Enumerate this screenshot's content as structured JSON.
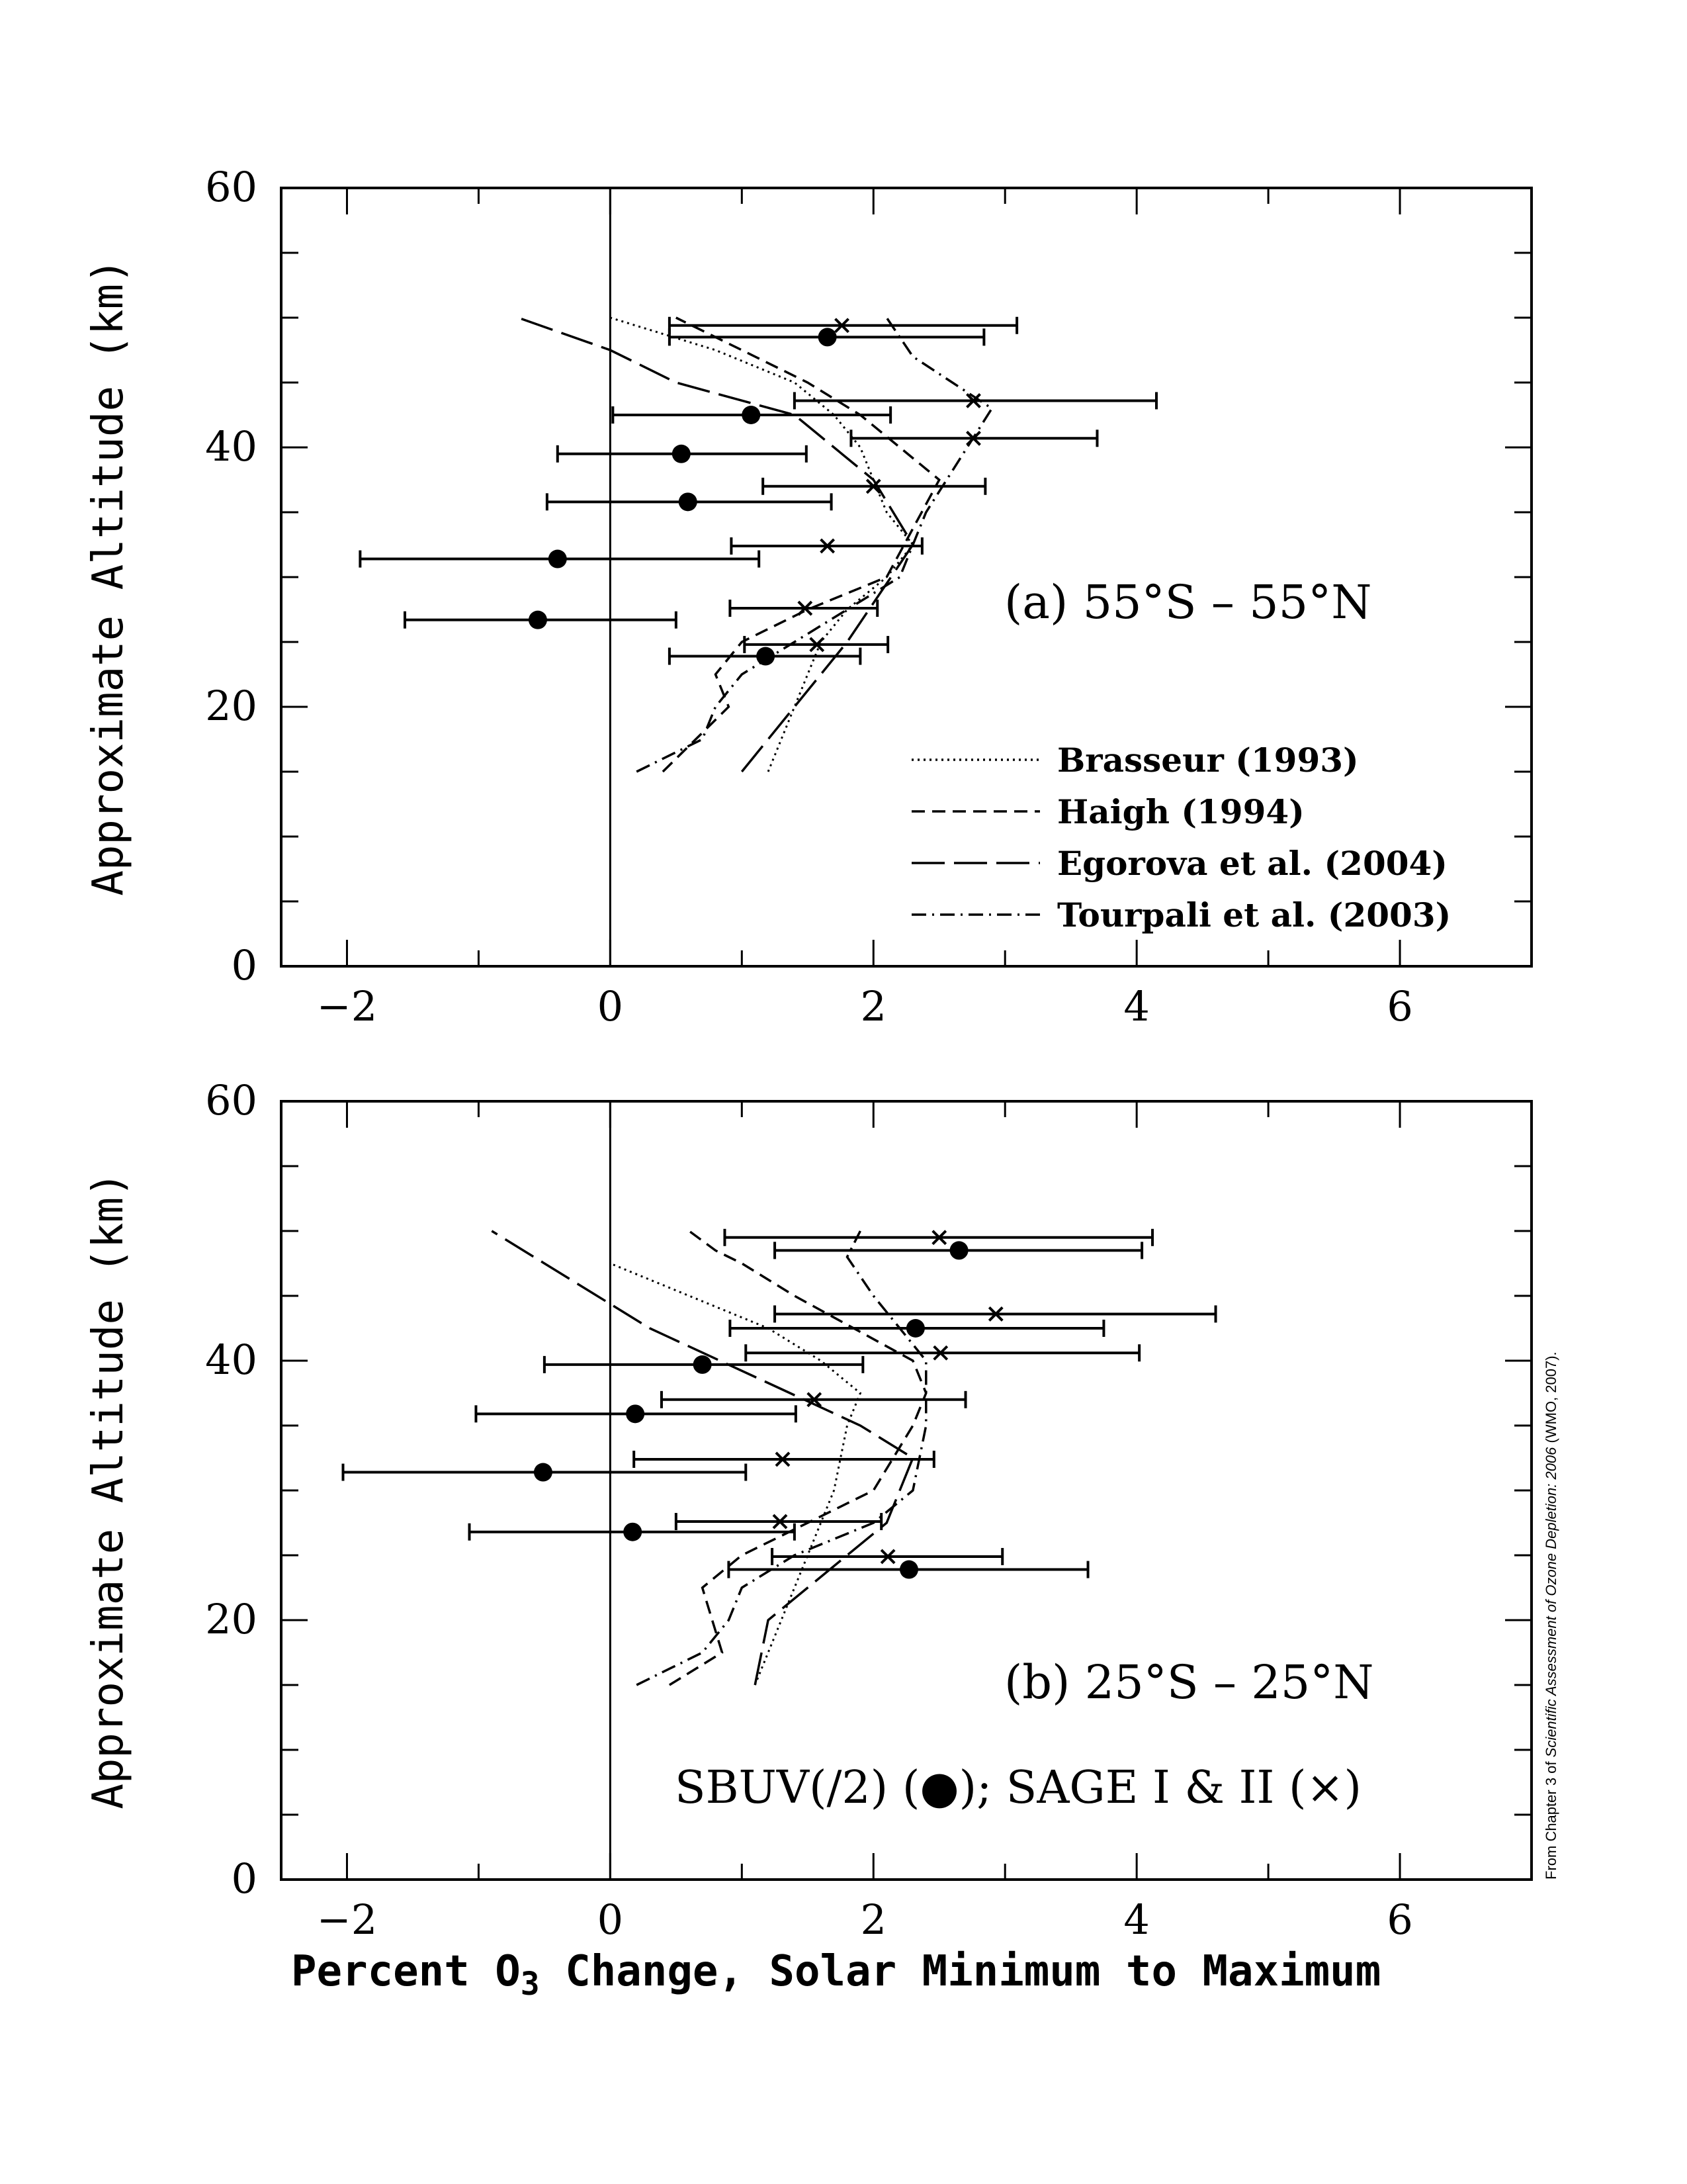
{
  "figure": {
    "xlabel_prefix": "Percent O",
    "xlabel_sub": "3",
    "xlabel_suffix": " Change, Solar Minimum to Maximum",
    "credit_prefix": "From Chapter 3 of ",
    "credit_italic": "Scientific Assessment of Ozone Depletion: 2006",
    "credit_suffix": " (WMO, 2007).",
    "observations_note": "SBUV(/2) (●); SAGE I & II (×)"
  },
  "chart_data": [
    {
      "type": "line",
      "panel_label": "(a) 55°S – 55°N",
      "ylabel": "Approximate Altitude (km)",
      "xlim": [
        -2.5,
        7
      ],
      "ylim": [
        0,
        60
      ],
      "xticks": [
        -2,
        0,
        2,
        4,
        6
      ],
      "xtick_labels": [
        "−2",
        "0",
        "2",
        "4",
        "6"
      ],
      "yticks": [
        0,
        20,
        40,
        60
      ],
      "ytick_labels": [
        "0",
        "20",
        "40",
        "60"
      ],
      "legend_position": "bottom-right",
      "series": [
        {
          "name": "Brasseur (1993)",
          "style": "dotted",
          "x": [
            1.2,
            1.4,
            1.6,
            1.8,
            2.1,
            2.3,
            2.1,
            2.0,
            1.9,
            1.7,
            1.4,
            0.8,
            0.0
          ],
          "y": [
            15,
            20,
            25,
            27.5,
            30,
            32.5,
            35,
            37.5,
            40,
            42.5,
            45,
            47.5,
            50
          ]
        },
        {
          "name": "Haigh (1994)",
          "style": "dashed",
          "x": [
            0.4,
            0.9,
            0.8,
            1.0,
            1.5,
            2.1,
            2.5,
            2.2,
            1.9,
            1.5,
            1.0,
            0.5
          ],
          "y": [
            15,
            20,
            22.5,
            25,
            27.5,
            30,
            37.5,
            40,
            42.5,
            45,
            47.5,
            50
          ]
        },
        {
          "name": "Egorova et al. (2004)",
          "style": "long-dash",
          "x": [
            1.0,
            1.4,
            1.8,
            2.3,
            2.0,
            1.4,
            0.5,
            0.0,
            -0.7
          ],
          "y": [
            15,
            20,
            25,
            32.5,
            37.5,
            42.5,
            45,
            47.5,
            50
          ]
        },
        {
          "name": "Tourpali et al. (2003)",
          "style": "dash-dot",
          "x": [
            0.2,
            0.7,
            0.8,
            1.0,
            1.4,
            2.2,
            2.4,
            2.9,
            2.6,
            2.3,
            2.1,
            2.1
          ],
          "y": [
            15,
            17.5,
            20,
            22.5,
            25,
            30,
            35,
            43,
            45,
            47,
            50,
            50
          ]
        }
      ],
      "sbuv": {
        "y": [
          48.5,
          42.5,
          39.5,
          35.8,
          31.4,
          26.7,
          23.9
        ],
        "x": [
          1.65,
          1.07,
          0.54,
          0.59,
          -0.4,
          -0.55,
          1.18
        ],
        "xerr_low": [
          0.45,
          0.02,
          -0.4,
          -0.48,
          -1.9,
          -1.56,
          0.45
        ],
        "xerr_high": [
          2.84,
          2.13,
          1.49,
          1.68,
          1.13,
          0.5,
          1.9
        ]
      },
      "sage": {
        "y": [
          49.4,
          43.6,
          40.7,
          37.0,
          32.4,
          27.6,
          24.8
        ],
        "x": [
          1.76,
          2.76,
          2.76,
          2.0,
          1.65,
          1.48,
          1.57
        ],
        "xerr_low": [
          0.45,
          1.4,
          1.83,
          1.16,
          0.92,
          0.91,
          1.02
        ],
        "xerr_high": [
          3.09,
          4.15,
          3.7,
          2.85,
          2.37,
          2.03,
          2.11
        ]
      }
    },
    {
      "type": "line",
      "panel_label": "(b) 25°S – 25°N",
      "ylabel": "Approximate Altitude (km)",
      "xlim": [
        -2.5,
        7
      ],
      "ylim": [
        0,
        60
      ],
      "xticks": [
        -2,
        0,
        2,
        4,
        6
      ],
      "xtick_labels": [
        "−2",
        "0",
        "2",
        "4",
        "6"
      ],
      "yticks": [
        0,
        20,
        40,
        60
      ],
      "ytick_labels": [
        "0",
        "20",
        "40",
        "60"
      ],
      "series": [
        {
          "name": "Brasseur (1993)",
          "style": "dotted",
          "x": [
            1.1,
            1.3,
            1.5,
            1.7,
            1.8,
            1.9,
            1.6,
            1.2,
            0.6,
            0.0
          ],
          "y": [
            15,
            20,
            25,
            30,
            35,
            37.5,
            40,
            42.5,
            45,
            47.5
          ]
        },
        {
          "name": "Haigh (1994)",
          "style": "dashed",
          "x": [
            0.45,
            0.85,
            0.7,
            1.0,
            2.0,
            2.3,
            2.4,
            2.3,
            1.4,
            1.0,
            0.8,
            0.6
          ],
          "y": [
            15,
            17.5,
            22.5,
            25,
            30,
            35,
            37.5,
            40,
            45,
            47.5,
            48.5,
            50
          ]
        },
        {
          "name": "Egorova et al. (2004)",
          "style": "long-dash",
          "x": [
            1.1,
            1.2,
            1.5,
            2.1,
            2.3,
            1.9,
            0.3,
            -0.5,
            -0.9
          ],
          "y": [
            15,
            20,
            22.5,
            27.5,
            32.5,
            35,
            42.5,
            47.5,
            50
          ]
        },
        {
          "name": "Tourpali et al. (2003)",
          "style": "dash-dot",
          "x": [
            0.2,
            0.7,
            0.9,
            1.0,
            1.4,
            2.0,
            2.3,
            2.4,
            2.4,
            2.0,
            1.8,
            1.9
          ],
          "y": [
            15,
            17.5,
            20,
            22.5,
            25,
            27.5,
            30,
            35,
            40,
            45,
            48,
            50
          ]
        }
      ],
      "sbuv": {
        "y": [
          48.5,
          42.5,
          39.7,
          35.9,
          31.4,
          26.8,
          23.9
        ],
        "x": [
          2.65,
          2.32,
          0.7,
          0.19,
          -0.51,
          0.17,
          2.27
        ],
        "xerr_low": [
          1.25,
          0.91,
          -0.5,
          -1.02,
          -2.03,
          -1.07,
          0.9
        ],
        "xerr_high": [
          4.04,
          3.75,
          1.92,
          1.41,
          1.03,
          1.4,
          3.63
        ]
      },
      "sage": {
        "y": [
          49.5,
          43.6,
          40.6,
          37.0,
          32.4,
          27.6,
          24.9
        ],
        "x": [
          2.5,
          2.93,
          2.51,
          1.55,
          1.31,
          1.29,
          2.11
        ],
        "xerr_low": [
          0.87,
          1.25,
          1.03,
          0.39,
          0.18,
          0.5,
          1.23
        ],
        "xerr_high": [
          4.12,
          4.6,
          4.02,
          2.7,
          2.46,
          2.06,
          2.98
        ]
      }
    }
  ]
}
